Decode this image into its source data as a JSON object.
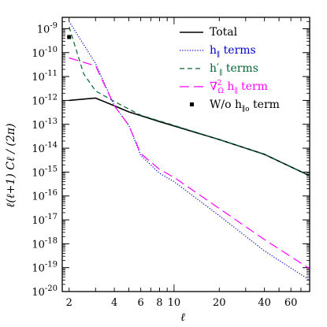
{
  "chart_data": {
    "type": "line",
    "title": "",
    "xlabel": "ℓ",
    "ylabel": "ℓ(ℓ+1) Cℓ / (2π)",
    "x_scale": "log",
    "y_scale": "log",
    "xlim": [
      1.8,
      80
    ],
    "ylim": [
      1e-20,
      3e-09
    ],
    "x_ticks": [
      {
        "value": 2,
        "label": "2"
      },
      {
        "value": 4,
        "label": "4"
      },
      {
        "value": 6,
        "label": "6"
      },
      {
        "value": 8,
        "label": "8"
      },
      {
        "value": 10,
        "label": "10"
      },
      {
        "value": 20,
        "label": "20"
      },
      {
        "value": 40,
        "label": "40"
      },
      {
        "value": 60,
        "label": "60"
      }
    ],
    "y_ticks": [
      {
        "exp": -9,
        "label": "10",
        "sup": "-9"
      },
      {
        "exp": -10,
        "label": "10",
        "sup": "-10"
      },
      {
        "exp": -11,
        "label": "10",
        "sup": "-11"
      },
      {
        "exp": -12,
        "label": "10",
        "sup": "-12"
      },
      {
        "exp": -13,
        "label": "10",
        "sup": "-13"
      },
      {
        "exp": -14,
        "label": "10",
        "sup": "-14"
      },
      {
        "exp": -15,
        "label": "10",
        "sup": "-15"
      },
      {
        "exp": -16,
        "label": "10",
        "sup": "-16"
      },
      {
        "exp": -17,
        "label": "10",
        "sup": "-17"
      },
      {
        "exp": -18,
        "label": "10",
        "sup": "-18"
      },
      {
        "exp": -19,
        "label": "10",
        "sup": "-19"
      },
      {
        "exp": -20,
        "label": "10",
        "sup": "-20"
      }
    ],
    "grid": false,
    "legend_position": "top-right",
    "series": [
      {
        "name": "Total",
        "style": "solid",
        "color": "#000000",
        "points": [
          [
            2,
            1e-12
          ],
          [
            3,
            1.25e-12
          ],
          [
            4,
            6e-13
          ],
          [
            5,
            3.3e-13
          ],
          [
            6,
            2.3e-13
          ],
          [
            8,
            1.3e-13
          ],
          [
            10,
            8.5e-14
          ],
          [
            20,
            2.3e-14
          ],
          [
            40,
            5.5e-15
          ],
          [
            80,
            7e-16
          ]
        ]
      },
      {
        "name_main": "h",
        "name_sub": "∥",
        "name_rest": " terms",
        "style": "dotted",
        "color": "#0000cc",
        "points": [
          [
            2,
            2e-09
          ],
          [
            3,
            3.5e-11
          ],
          [
            4,
            6e-13
          ],
          [
            5,
            9e-14
          ],
          [
            6,
            5e-15
          ],
          [
            8,
            9e-16
          ],
          [
            10,
            4e-16
          ],
          [
            20,
            1.5e-17
          ],
          [
            40,
            5e-19
          ],
          [
            80,
            3e-20
          ]
        ]
      },
      {
        "name_main": "h′",
        "name_sub": "∥",
        "name_rest": " terms",
        "style": "dashed",
        "color": "#006633",
        "points": [
          [
            2,
            1.2e-09
          ],
          [
            2.5,
            1.3e-11
          ],
          [
            3,
            2.5e-12
          ],
          [
            4,
            9e-13
          ],
          [
            6,
            2.4e-13
          ],
          [
            10,
            9e-14
          ],
          [
            20,
            2.3e-14
          ],
          [
            40,
            5.5e-15
          ],
          [
            80,
            7e-16
          ]
        ]
      },
      {
        "name_main": "∇",
        "name_sup": "2",
        "name_sub_omega": "Ω",
        "name_after": " h",
        "name_sub": "∥",
        "name_rest": " term",
        "style": "longdash",
        "color": "#ff00ff",
        "points": [
          [
            2,
            6e-11
          ],
          [
            3,
            2.8e-11
          ],
          [
            4,
            6e-13
          ],
          [
            5,
            9e-14
          ],
          [
            6,
            6e-15
          ],
          [
            8,
            1.3e-15
          ],
          [
            10,
            6e-16
          ],
          [
            20,
            3e-17
          ],
          [
            40,
            1.5e-18
          ],
          [
            80,
            9e-20
          ]
        ]
      }
    ],
    "markers": [
      {
        "name_main": "W/o h",
        "name_sub": "∥o",
        "name_rest": " term",
        "shape": "square",
        "color": "#000000",
        "x": 2,
        "y": 4.5e-10
      }
    ]
  }
}
